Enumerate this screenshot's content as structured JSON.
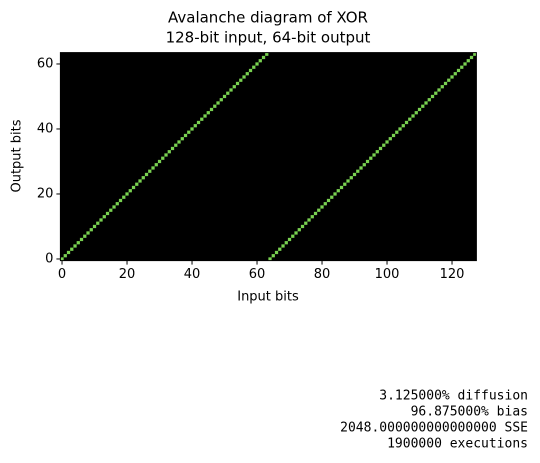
{
  "chart_data": {
    "type": "heatmap",
    "title": "Avalanche diagram of XOR",
    "subtitle": "128-bit input, 64-bit output",
    "x_label": "Input bits",
    "y_label": "Output bits",
    "x": [
      0,
      1,
      2,
      3,
      4,
      5,
      6,
      7,
      8,
      9,
      10,
      11,
      12,
      13,
      14,
      15,
      16,
      17,
      18,
      19,
      20,
      21,
      22,
      23,
      24,
      25,
      26,
      27,
      28,
      29,
      30,
      31,
      32,
      33,
      34,
      35,
      36,
      37,
      38,
      39,
      40,
      41,
      42,
      43,
      44,
      45,
      46,
      47,
      48,
      49,
      50,
      51,
      52,
      53,
      54,
      55,
      56,
      57,
      58,
      59,
      60,
      61,
      62,
      63,
      64,
      65,
      66,
      67,
      68,
      69,
      70,
      71,
      72,
      73,
      74,
      75,
      76,
      77,
      78,
      79,
      80,
      81,
      82,
      83,
      84,
      85,
      86,
      87,
      88,
      89,
      90,
      91,
      92,
      93,
      94,
      95,
      96,
      97,
      98,
      99,
      100,
      101,
      102,
      103,
      104,
      105,
      106,
      107,
      108,
      109,
      110,
      111,
      112,
      113,
      114,
      115,
      116,
      117,
      118,
      119,
      120,
      121,
      122,
      123,
      124,
      125,
      126,
      127
    ],
    "y": [
      0,
      1,
      2,
      3,
      4,
      5,
      6,
      7,
      8,
      9,
      10,
      11,
      12,
      13,
      14,
      15,
      16,
      17,
      18,
      19,
      20,
      21,
      22,
      23,
      24,
      25,
      26,
      27,
      28,
      29,
      30,
      31,
      32,
      33,
      34,
      35,
      36,
      37,
      38,
      39,
      40,
      41,
      42,
      43,
      44,
      45,
      46,
      47,
      48,
      49,
      50,
      51,
      52,
      53,
      54,
      55,
      56,
      57,
      58,
      59,
      60,
      61,
      62,
      63,
      0,
      1,
      2,
      3,
      4,
      5,
      6,
      7,
      8,
      9,
      10,
      11,
      12,
      13,
      14,
      15,
      16,
      17,
      18,
      19,
      20,
      21,
      22,
      23,
      24,
      25,
      26,
      27,
      28,
      29,
      30,
      31,
      32,
      33,
      34,
      35,
      36,
      37,
      38,
      39,
      40,
      41,
      42,
      43,
      44,
      45,
      46,
      47,
      48,
      49,
      50,
      51,
      52,
      53,
      54,
      55,
      56,
      57,
      58,
      59,
      60,
      61,
      62,
      63
    ],
    "color": "#79d151",
    "background": "#000000",
    "xlim": [
      -0.5,
      127.5
    ],
    "ylim": [
      -0.5,
      63.5
    ],
    "xticks": [
      0,
      20,
      40,
      60,
      80,
      100,
      120
    ],
    "yticks": [
      0,
      20,
      40,
      60
    ],
    "annotations": [
      "3.125000% diffusion",
      "96.875000% bias",
      "2048.000000000000000 SSE",
      "1900000 executions"
    ]
  }
}
